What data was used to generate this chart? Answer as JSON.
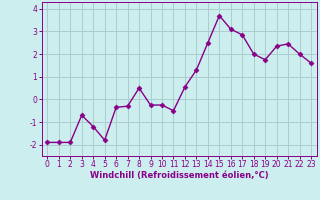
{
  "x": [
    0,
    1,
    2,
    3,
    4,
    5,
    6,
    7,
    8,
    9,
    10,
    11,
    12,
    13,
    14,
    15,
    16,
    17,
    18,
    19,
    20,
    21,
    22,
    23
  ],
  "y": [
    -1.9,
    -1.9,
    -1.9,
    -0.7,
    -1.2,
    -1.8,
    -0.35,
    -0.3,
    0.5,
    -0.25,
    -0.25,
    -0.5,
    0.55,
    1.3,
    2.5,
    3.7,
    3.1,
    2.85,
    2.0,
    1.75,
    2.35,
    2.45,
    2.0,
    1.6
  ],
  "line_color": "#880088",
  "marker": "D",
  "marker_size": 2.5,
  "linewidth": 1.0,
  "bg_color": "#cceeee",
  "grid_color": "#aacccc",
  "xlabel": "Windchill (Refroidissement éolien,°C)",
  "xlabel_color": "#880088",
  "tick_color": "#880088",
  "spine_color": "#880088",
  "ylim": [
    -2.5,
    4.3
  ],
  "xlim": [
    -0.5,
    23.5
  ],
  "yticks": [
    -2,
    -1,
    0,
    1,
    2,
    3,
    4
  ],
  "xticks": [
    0,
    1,
    2,
    3,
    4,
    5,
    6,
    7,
    8,
    9,
    10,
    11,
    12,
    13,
    14,
    15,
    16,
    17,
    18,
    19,
    20,
    21,
    22,
    23
  ],
  "tick_fontsize": 5.5,
  "xlabel_fontsize": 6.0
}
